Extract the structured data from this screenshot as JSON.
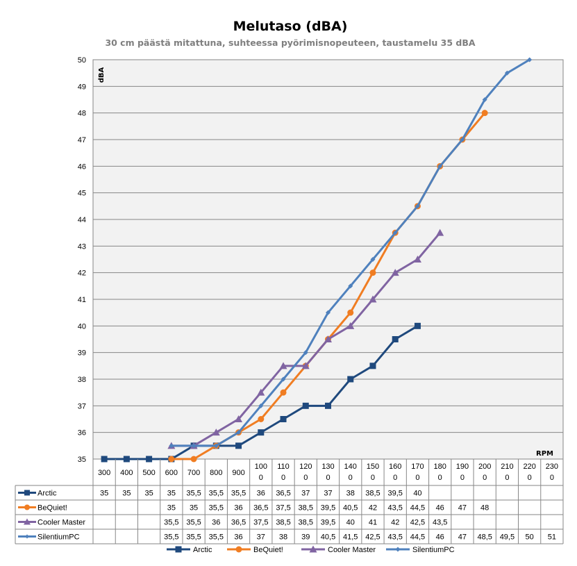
{
  "chart_data": {
    "type": "line",
    "title": "Melutaso (dBA)",
    "subtitle": "30 cm päästä mitattuna, suhteessa pyörimisnopeuteen, taustamelu 35 dBA",
    "ylabel": "dBA",
    "xlabel": "RPM",
    "ylim": [
      35,
      50
    ],
    "yticks": [
      "35",
      "36",
      "37",
      "38",
      "39",
      "40",
      "41",
      "42",
      "43",
      "44",
      "45",
      "46",
      "47",
      "48",
      "49",
      "50"
    ],
    "grid": true,
    "legend_position": "bottom",
    "categories": [
      {
        "top": "300",
        "bottom": ""
      },
      {
        "top": "400",
        "bottom": ""
      },
      {
        "top": "500",
        "bottom": ""
      },
      {
        "top": "600",
        "bottom": ""
      },
      {
        "top": "700",
        "bottom": ""
      },
      {
        "top": "800",
        "bottom": ""
      },
      {
        "top": "900",
        "bottom": ""
      },
      {
        "top": "100",
        "bottom": "0"
      },
      {
        "top": "110",
        "bottom": "0"
      },
      {
        "top": "120",
        "bottom": "0"
      },
      {
        "top": "130",
        "bottom": "0"
      },
      {
        "top": "140",
        "bottom": "0"
      },
      {
        "top": "150",
        "bottom": "0"
      },
      {
        "top": "160",
        "bottom": "0"
      },
      {
        "top": "170",
        "bottom": "0"
      },
      {
        "top": "180",
        "bottom": "0"
      },
      {
        "top": "190",
        "bottom": "0"
      },
      {
        "top": "200",
        "bottom": "0"
      },
      {
        "top": "210",
        "bottom": "0"
      },
      {
        "top": "220",
        "bottom": "0"
      },
      {
        "top": "230",
        "bottom": "0"
      }
    ],
    "series": [
      {
        "name": "Arctic",
        "color": "#1f497d",
        "marker": "square",
        "values": [
          35,
          35,
          35,
          35,
          35.5,
          35.5,
          35.5,
          36,
          36.5,
          37,
          37,
          38,
          38.5,
          39.5,
          40,
          null,
          null,
          null,
          null,
          null,
          null
        ],
        "labels": [
          "35",
          "35",
          "35",
          "35",
          "35,5",
          "35,5",
          "35,5",
          "36",
          "36,5",
          "37",
          "37",
          "38",
          "38,5",
          "39,5",
          "40",
          "",
          "",
          "",
          "",
          "",
          ""
        ]
      },
      {
        "name": "BeQuiet!",
        "color": "#f07d22",
        "marker": "circle",
        "values": [
          null,
          null,
          null,
          35,
          35,
          35.5,
          36,
          36.5,
          37.5,
          38.5,
          39.5,
          40.5,
          42,
          43.5,
          44.5,
          46,
          47,
          48,
          null,
          null,
          null
        ],
        "labels": [
          "",
          "",
          "",
          "35",
          "35",
          "35,5",
          "36",
          "36,5",
          "37,5",
          "38,5",
          "39,5",
          "40,5",
          "42",
          "43,5",
          "44,5",
          "46",
          "47",
          "48",
          "",
          "",
          ""
        ]
      },
      {
        "name": "Cooler Master",
        "color": "#8064a2",
        "marker": "triangle",
        "values": [
          null,
          null,
          null,
          35.5,
          35.5,
          36,
          36.5,
          37.5,
          38.5,
          38.5,
          39.5,
          40,
          41,
          42,
          42.5,
          43.5,
          null,
          null,
          null,
          null,
          null
        ],
        "labels": [
          "",
          "",
          "",
          "35,5",
          "35,5",
          "36",
          "36,5",
          "37,5",
          "38,5",
          "38,5",
          "39,5",
          "40",
          "41",
          "42",
          "42,5",
          "43,5",
          "",
          "",
          "",
          "",
          ""
        ]
      },
      {
        "name": "SilentiumPC",
        "color": "#4f81bd",
        "marker": "diamond",
        "values": [
          null,
          null,
          null,
          35.5,
          35.5,
          35.5,
          36,
          37,
          38,
          39,
          40.5,
          41.5,
          42.5,
          43.5,
          44.5,
          46,
          47,
          48.5,
          49.5,
          50,
          51
        ],
        "labels": [
          "",
          "",
          "",
          "35,5",
          "35,5",
          "35,5",
          "36",
          "37",
          "38",
          "39",
          "40,5",
          "41,5",
          "42,5",
          "43,5",
          "44,5",
          "46",
          "47",
          "48,5",
          "49,5",
          "50",
          "51"
        ]
      }
    ]
  }
}
